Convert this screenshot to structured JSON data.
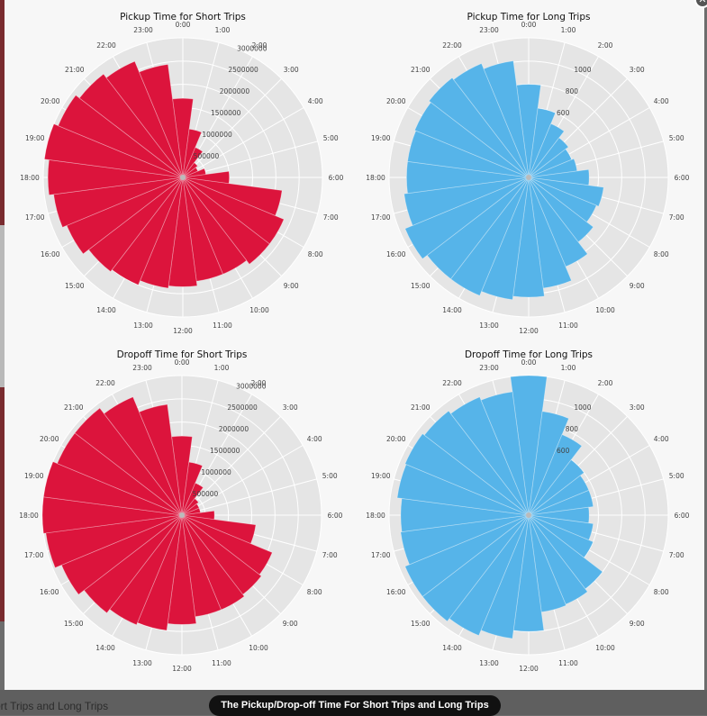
{
  "page": {
    "background_text": "ort Trips and Long Trips",
    "caption": "The Pickup/Drop-off Time For Short Trips and Long Trips"
  },
  "chart_data": [
    {
      "type": "bar",
      "polar": true,
      "title": "Pickup Time for Short Trips",
      "color": "#dc143c",
      "categories": [
        "0:00",
        "1:00",
        "2:00",
        "3:00",
        "4:00",
        "5:00",
        "6:00",
        "7:00",
        "8:00",
        "9:00",
        "10:00",
        "11:00",
        "12:00",
        "13:00",
        "14:00",
        "15:00",
        "16:00",
        "17:00",
        "18:00",
        "19:00",
        "20:00",
        "21:00",
        "22:00",
        "23:00"
      ],
      "values": [
        1700000,
        1050000,
        700000,
        400000,
        350000,
        500000,
        1000000,
        2150000,
        2350000,
        2350000,
        2250000,
        2250000,
        2350000,
        2400000,
        2500000,
        2550000,
        2700000,
        2800000,
        2900000,
        3050000,
        2900000,
        2800000,
        2700000,
        2450000
      ],
      "rlim": [
        0,
        3000000
      ],
      "rticks": [
        500000,
        1000000,
        1500000,
        2000000,
        2500000,
        3000000
      ],
      "rtick_labels": [
        "500000",
        "1000000",
        "1500000",
        "2000000",
        "2500000",
        "3000000"
      ]
    },
    {
      "type": "bar",
      "polar": true,
      "title": "Pickup Time for Long Trips",
      "color": "#56b4e9",
      "categories": [
        "0:00",
        "1:00",
        "2:00",
        "3:00",
        "4:00",
        "5:00",
        "6:00",
        "7:00",
        "8:00",
        "9:00",
        "10:00",
        "11:00",
        "12:00",
        "13:00",
        "14:00",
        "15:00",
        "16:00",
        "17:00",
        "18:00",
        "19:00",
        "20:00",
        "21:00",
        "22:00",
        "23:00"
      ],
      "values": [
        800,
        600,
        500,
        430,
        400,
        420,
        520,
        650,
        630,
        700,
        830,
        960,
        1030,
        1060,
        1100,
        1100,
        1150,
        1080,
        1050,
        1050,
        1060,
        1080,
        1060,
        1010
      ],
      "rlim": [
        0,
        1200
      ],
      "rticks": [
        200,
        400,
        600,
        800,
        1000,
        1200
      ],
      "rtick_labels": [
        "",
        "",
        "600",
        "800",
        "1000",
        ""
      ]
    },
    {
      "type": "bar",
      "polar": true,
      "title": "Dropoff Time for Short Trips",
      "color": "#dc143c",
      "categories": [
        "0:00",
        "1:00",
        "2:00",
        "3:00",
        "4:00",
        "5:00",
        "6:00",
        "7:00",
        "8:00",
        "9:00",
        "10:00",
        "11:00",
        "12:00",
        "13:00",
        "14:00",
        "15:00",
        "16:00",
        "17:00",
        "18:00",
        "19:00",
        "20:00",
        "21:00",
        "22:00",
        "23:00"
      ],
      "values": [
        1700000,
        1150000,
        750000,
        450000,
        400000,
        400000,
        700000,
        1600000,
        2100000,
        2150000,
        2200000,
        2200000,
        2350000,
        2500000,
        2550000,
        2650000,
        2800000,
        2950000,
        3100000,
        3100000,
        2900000,
        2900000,
        2750000,
        2400000
      ],
      "rlim": [
        0,
        3000000
      ],
      "rticks": [
        500000,
        1000000,
        1500000,
        2000000,
        2500000,
        3000000
      ],
      "rtick_labels": [
        "500000",
        "1000000",
        "1500000",
        "2000000",
        "2500000",
        "3000000"
      ]
    },
    {
      "type": "bar",
      "polar": true,
      "title": "Dropoff Time for Long Trips",
      "color": "#56b4e9",
      "categories": [
        "0:00",
        "1:00",
        "2:00",
        "3:00",
        "4:00",
        "5:00",
        "6:00",
        "7:00",
        "8:00",
        "9:00",
        "10:00",
        "11:00",
        "12:00",
        "13:00",
        "14:00",
        "15:00",
        "16:00",
        "17:00",
        "18:00",
        "19:00",
        "20:00",
        "21:00",
        "22:00",
        "23:00"
      ],
      "values": [
        1260,
        900,
        750,
        600,
        560,
        560,
        520,
        560,
        600,
        800,
        830,
        840,
        1000,
        1070,
        1120,
        1150,
        1150,
        1110,
        1100,
        1140,
        1150,
        1130,
        1100,
        1070
      ],
      "rlim": [
        0,
        1200
      ],
      "rticks": [
        200,
        400,
        600,
        800,
        1000,
        1200
      ],
      "rtick_labels": [
        "",
        "",
        "600",
        "800",
        "1000",
        ""
      ]
    }
  ]
}
